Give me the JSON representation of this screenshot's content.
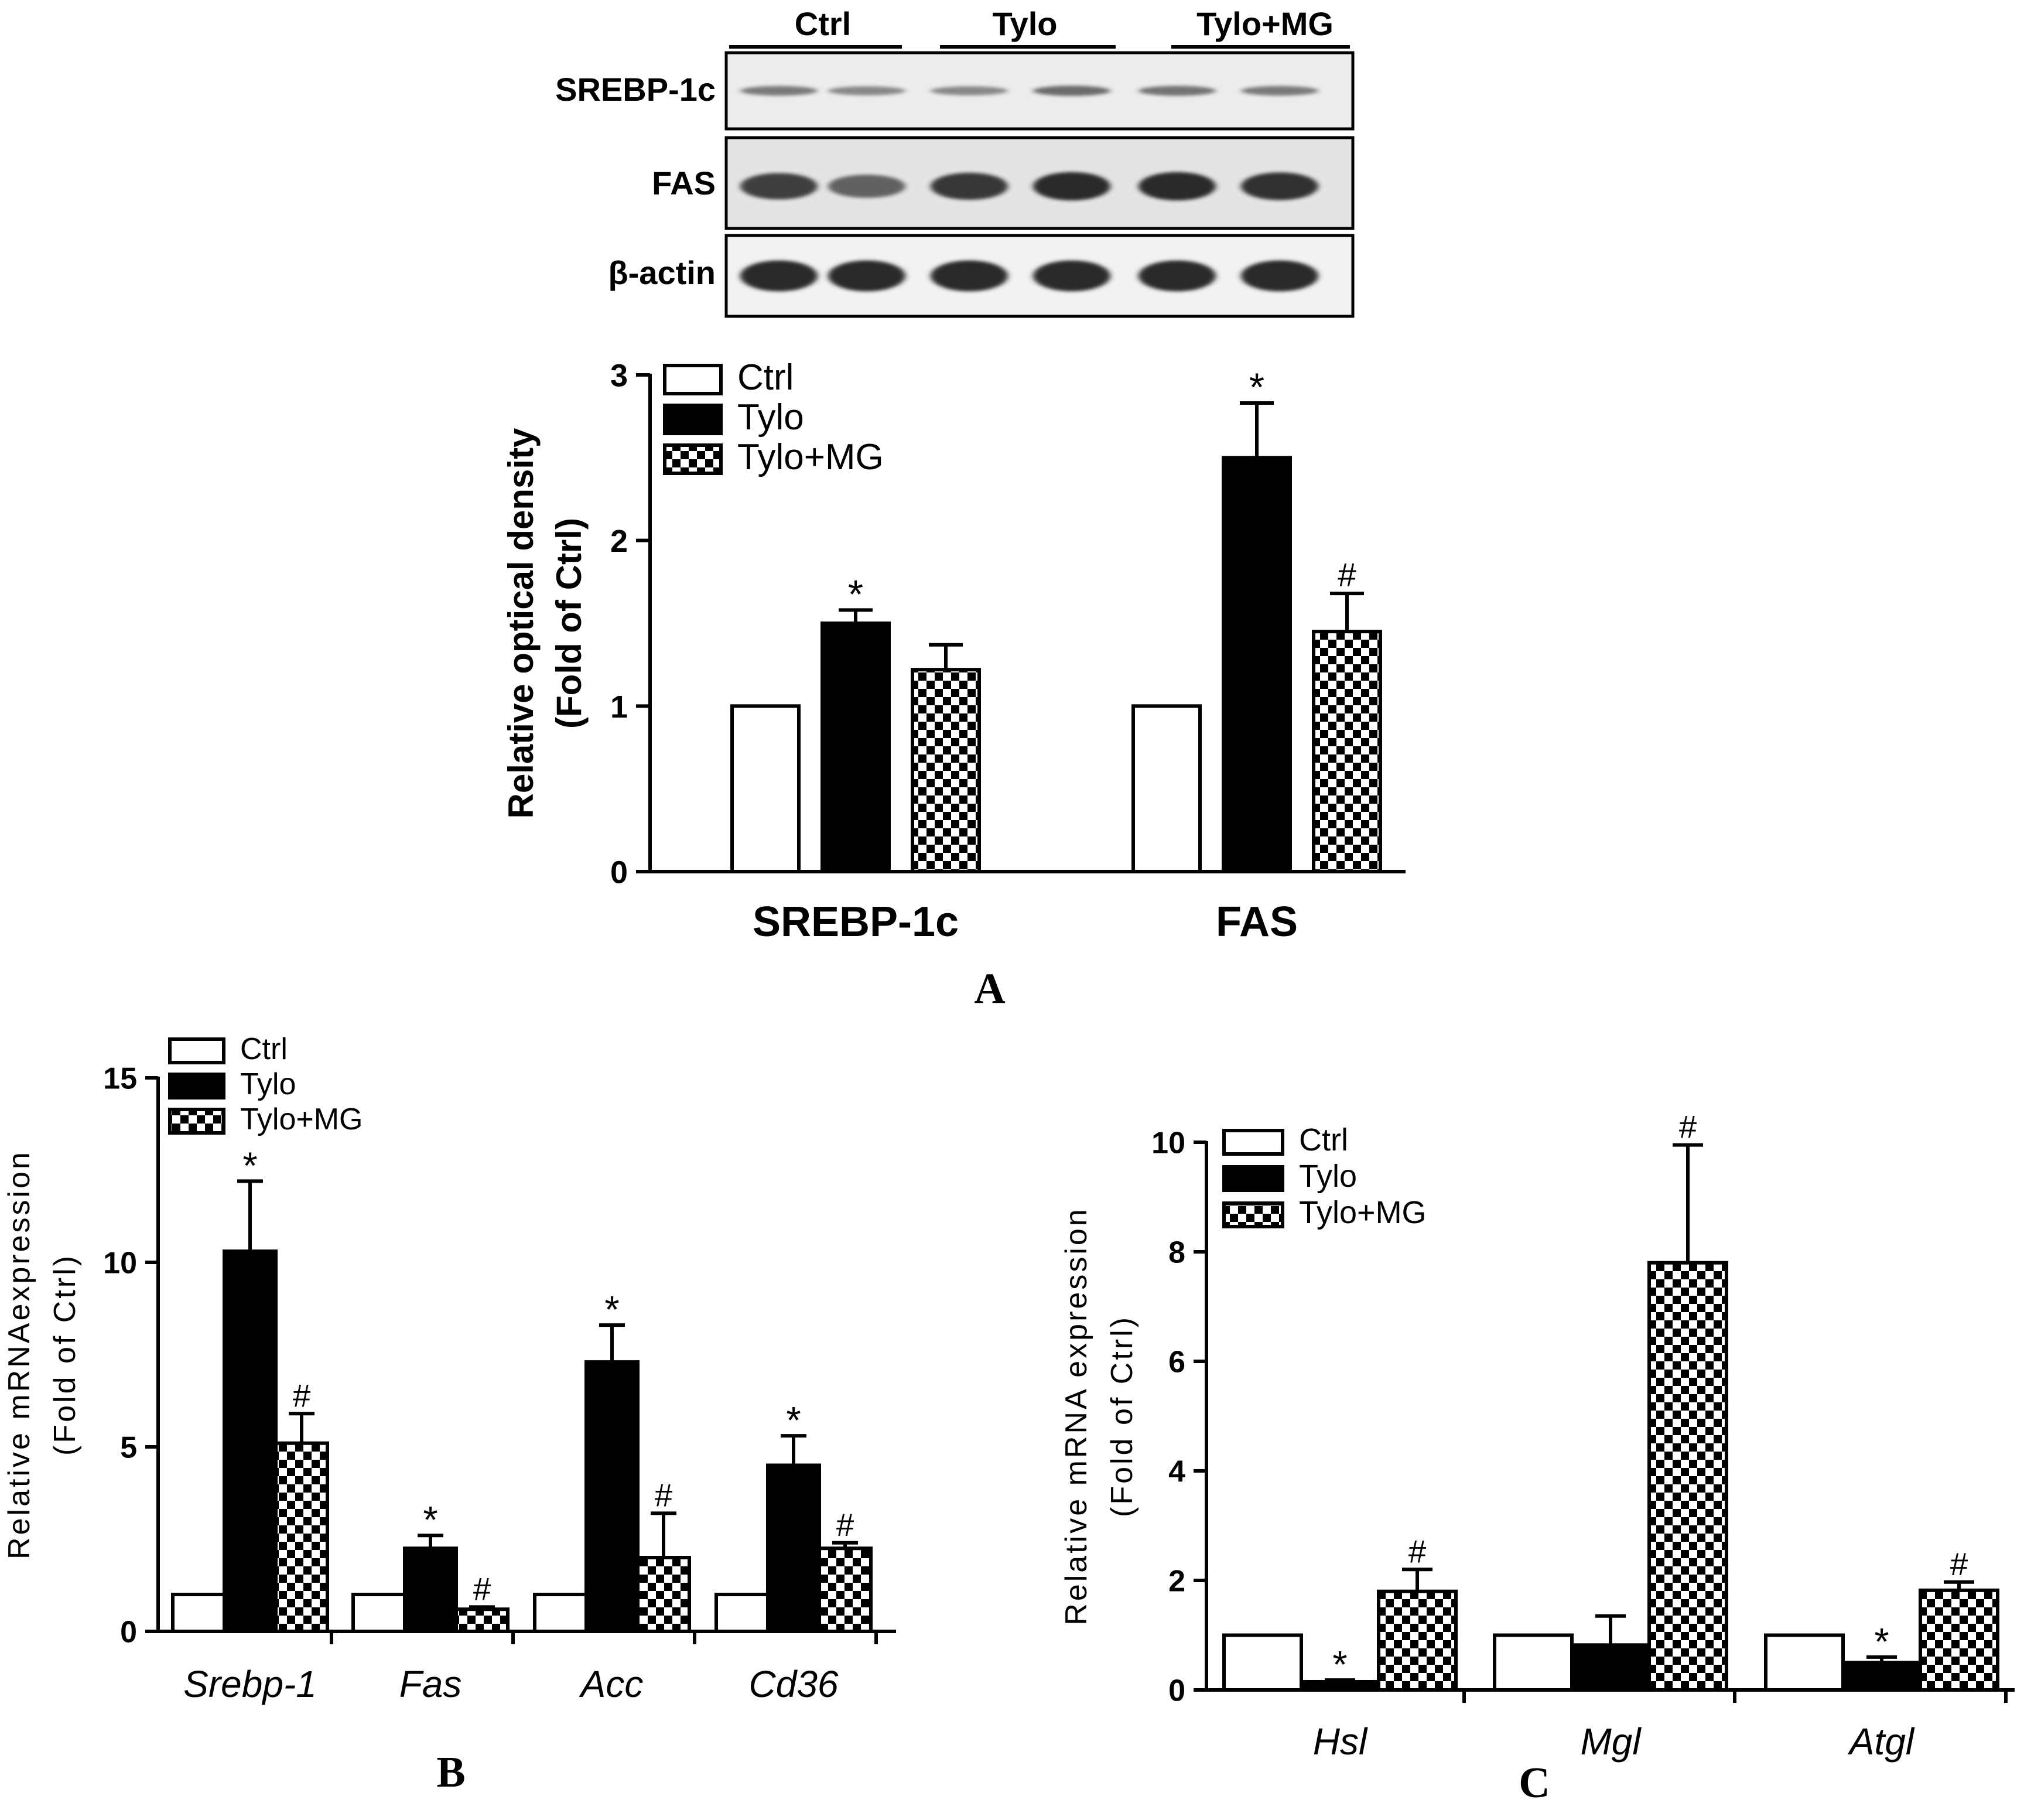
{
  "patterns": {
    "hatch": "checker"
  },
  "colors": {
    "ink": "#000000",
    "paper": "#ffffff",
    "blot_bg": "#ececec",
    "band": "#2a2a2a"
  },
  "blot": {
    "groups": [
      "Ctrl",
      "Tylo",
      "Tylo+MG"
    ],
    "rows": [
      {
        "label": "SREBP-1c",
        "intensity": [
          0.45,
          0.35,
          0.35,
          0.55,
          0.5,
          0.45
        ]
      },
      {
        "label": "FAS",
        "intensity": [
          0.85,
          0.6,
          0.9,
          1.0,
          1.0,
          0.95
        ]
      },
      {
        "label": "β-actin",
        "intensity": [
          1.0,
          1.0,
          1.0,
          1.0,
          1.0,
          1.0
        ]
      }
    ]
  },
  "chart_data": [
    {
      "panel": "A",
      "type": "bar",
      "ylabel_lines": [
        "Relative optical density",
        "(Fold of Ctrl)"
      ],
      "ylim": [
        0,
        3
      ],
      "yticks": [
        "0",
        "1",
        "2",
        "3"
      ],
      "categories": [
        "SREBP-1c",
        "FAS"
      ],
      "italic_categories": false,
      "legend": [
        "Ctrl",
        "Tylo",
        "Tylo+MG"
      ],
      "series": [
        {
          "name": "Ctrl",
          "fill": "white",
          "values": [
            1.0,
            1.0
          ],
          "errors": [
            0,
            0
          ],
          "marks": [
            "",
            ""
          ]
        },
        {
          "name": "Tylo",
          "fill": "black",
          "values": [
            1.5,
            2.5
          ],
          "errors": [
            0.08,
            0.33
          ],
          "marks": [
            "*",
            "*"
          ]
        },
        {
          "name": "Tylo+MG",
          "fill": "hatch",
          "values": [
            1.22,
            1.45
          ],
          "errors": [
            0.15,
            0.23
          ],
          "marks": [
            "",
            "#"
          ]
        }
      ]
    },
    {
      "panel": "B",
      "type": "bar",
      "ylabel_lines": [
        "Relative mRNAexpression",
        "(Fold of Ctrl)"
      ],
      "ylim": [
        0,
        15
      ],
      "yticks": [
        "0",
        "5",
        "10",
        "15"
      ],
      "categories": [
        "Srebp-1",
        "Fas",
        "Acc",
        "Cd36"
      ],
      "italic_categories": true,
      "legend": [
        "Ctrl",
        "Tylo",
        "Tylo+MG"
      ],
      "series": [
        {
          "name": "Ctrl",
          "fill": "white",
          "values": [
            1.0,
            1.0,
            1.0,
            1.0
          ],
          "errors": [
            0,
            0,
            0,
            0
          ],
          "marks": [
            "",
            "",
            "",
            ""
          ]
        },
        {
          "name": "Tylo",
          "fill": "black",
          "values": [
            10.3,
            2.25,
            7.3,
            4.5
          ],
          "errors": [
            1.9,
            0.35,
            1.0,
            0.8
          ],
          "marks": [
            "*",
            "*",
            "*",
            "*"
          ]
        },
        {
          "name": "Tylo+MG",
          "fill": "hatch",
          "values": [
            5.1,
            0.6,
            2.0,
            2.25
          ],
          "errors": [
            0.8,
            0.06,
            1.2,
            0.15
          ],
          "marks": [
            "#",
            "#",
            "#",
            "#"
          ]
        }
      ]
    },
    {
      "panel": "C",
      "type": "bar",
      "ylabel_lines": [
        "Relative mRNA expression",
        "(Fold of Ctrl)"
      ],
      "ylim": [
        0,
        10
      ],
      "yticks": [
        "0",
        "2",
        "4",
        "6",
        "8",
        "10"
      ],
      "categories": [
        "Hsl",
        "Mgl",
        "Atgl"
      ],
      "italic_categories": true,
      "legend": [
        "Ctrl",
        "Tylo",
        "Tylo+MG"
      ],
      "series": [
        {
          "name": "Ctrl",
          "fill": "white",
          "values": [
            1.0,
            1.0,
            1.0
          ],
          "errors": [
            0,
            0,
            0
          ],
          "marks": [
            "",
            "",
            ""
          ]
        },
        {
          "name": "Tylo",
          "fill": "black",
          "values": [
            0.15,
            0.82,
            0.5
          ],
          "errors": [
            0.03,
            0.53,
            0.1
          ],
          "marks": [
            "*",
            "",
            "*"
          ]
        },
        {
          "name": "Tylo+MG",
          "fill": "hatch",
          "values": [
            1.8,
            7.8,
            1.82
          ],
          "errors": [
            0.4,
            2.15,
            0.15
          ],
          "marks": [
            "#",
            "#",
            "#"
          ]
        }
      ]
    }
  ]
}
